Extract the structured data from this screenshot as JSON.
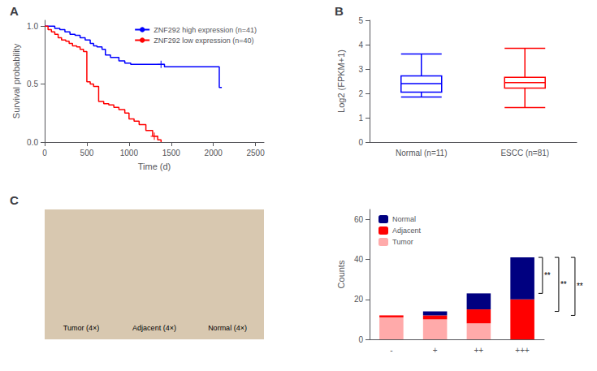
{
  "chart_data": [
    {
      "type": "line",
      "title": "A",
      "xlabel": "Time (d)",
      "ylabel": "Survival probability",
      "line_style": "step",
      "xlim": [
        0,
        2600
      ],
      "xticks": [
        0,
        500,
        1000,
        1500,
        2000,
        2500
      ],
      "ylim": [
        0,
        1.05
      ],
      "yticks": [
        {
          "value": 0,
          "label": "0.0"
        },
        0.5,
        {
          "value": 1.0,
          "label": "1.0"
        }
      ],
      "legend": "upper right",
      "grid": false,
      "series": [
        {
          "name": "ZNF292 high expression (n=41)",
          "color": "#0000FF",
          "x": [
            0,
            60,
            120,
            180,
            240,
            300,
            360,
            420,
            480,
            540,
            580,
            620,
            680,
            720,
            780,
            880,
            950,
            1020,
            1380,
            1420,
            2070,
            2100
          ],
          "values": [
            1.0,
            1.0,
            0.98,
            0.97,
            0.95,
            0.93,
            0.92,
            0.9,
            0.88,
            0.85,
            0.83,
            0.82,
            0.8,
            0.75,
            0.73,
            0.7,
            0.68,
            0.67,
            0.67,
            0.65,
            0.47,
            0.47
          ],
          "censor_x": [
            1380
          ],
          "censor_y": [
            0.67
          ]
        },
        {
          "name": "ZNF292 low expression (n=40)",
          "color": "#FF0000",
          "x": [
            0,
            40,
            80,
            120,
            160,
            200,
            250,
            290,
            330,
            380,
            420,
            460,
            500,
            540,
            580,
            640,
            700,
            760,
            820,
            880,
            950,
            1000,
            1060,
            1120,
            1200,
            1280,
            1340,
            1380
          ],
          "values": [
            1.0,
            0.97,
            0.95,
            0.93,
            0.9,
            0.88,
            0.87,
            0.85,
            0.83,
            0.82,
            0.8,
            0.78,
            0.52,
            0.5,
            0.48,
            0.35,
            0.33,
            0.32,
            0.3,
            0.28,
            0.25,
            0.2,
            0.18,
            0.15,
            0.1,
            0.05,
            0.02,
            0.0
          ],
          "censor_x": [
            1300
          ],
          "censor_y": [
            0.05
          ]
        }
      ]
    },
    {
      "type": "box",
      "title": "B",
      "ylabel": "Log2 (FPKM+1)",
      "categories": [
        "Normal (n=11)",
        "ESCC (n=81)"
      ],
      "colors": [
        "#0000FF",
        "#FF0000"
      ],
      "values": [
        {
          "whisker_low": 1.85,
          "q1": 2.05,
          "median": 2.4,
          "q3": 2.72,
          "whisker_high": 3.62
        },
        {
          "whisker_low": 1.42,
          "q1": 2.22,
          "median": 2.44,
          "q3": 2.66,
          "whisker_high": 3.85
        }
      ],
      "ylim": [
        0,
        5
      ],
      "yticks": [
        0,
        1,
        2,
        3,
        4,
        5
      ],
      "grid": false
    },
    {
      "type": "image",
      "title": "C",
      "color": "#D8C8B0",
      "tick_labels": false,
      "annotations": [
        "Tumor (4×)",
        "Adjacent (4×)",
        "Normal (4×)"
      ]
    },
    {
      "type": "bar",
      "stacked": true,
      "ylabel": "Counts",
      "categories": [
        "-",
        "+",
        "++",
        "+++"
      ],
      "series": [
        {
          "name": "Tumor",
          "color": "#FFAAAA",
          "values": [
            11,
            10,
            8,
            0
          ]
        },
        {
          "name": "Adjacent",
          "color": "#FF0000",
          "values": [
            1,
            2,
            7,
            20
          ]
        },
        {
          "name": "Normal",
          "color": "#000080",
          "values": [
            0,
            2,
            8,
            21
          ]
        }
      ],
      "ylim": [
        0,
        65
      ],
      "yticks": [
        0,
        20,
        40,
        60
      ],
      "legend": "upper left",
      "grid": false,
      "brackets": [
        {
          "from": 23,
          "to": 41,
          "label": "**"
        },
        {
          "from": 14,
          "to": 41,
          "label": "**"
        },
        {
          "from": 12,
          "to": 41,
          "label": "**"
        }
      ]
    }
  ]
}
